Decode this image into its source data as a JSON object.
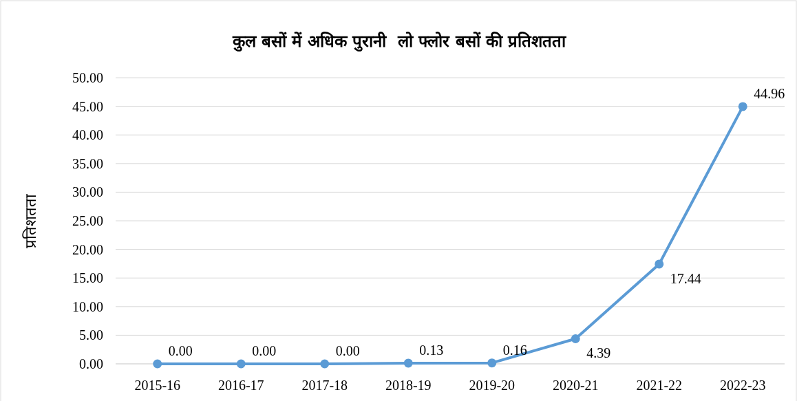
{
  "chart_data": {
    "type": "line",
    "title": "कुल बसों में अधिक पुरानी  लो फ्लोर बसों की प्रतिशतता",
    "ylabel": "प्रतिशतता",
    "categories": [
      "2015-16",
      "2016-17",
      "2017-18",
      "2018-19",
      "2019-20",
      "2020-21",
      "2021-22",
      "2022-23"
    ],
    "series": [
      {
        "color": "#5b9bd5",
        "values": [
          0,
          0,
          0,
          0.13,
          0.16,
          4.39,
          17.44,
          44.96
        ],
        "value_labels": [
          "0.00",
          "0.00",
          "0.00",
          "0.13",
          "0.16",
          "4.39",
          "17.44",
          "44.96"
        ]
      }
    ],
    "ylim": [
      0,
      50
    ],
    "yticks": [
      {
        "value": 0,
        "label": "0.00"
      },
      {
        "value": 5,
        "label": "5.00"
      },
      {
        "value": 10,
        "label": "10.00"
      },
      {
        "value": 15,
        "label": "15.00"
      },
      {
        "value": 20,
        "label": "20.00"
      },
      {
        "value": 25,
        "label": "25.00"
      },
      {
        "value": 30,
        "label": "30.00"
      },
      {
        "value": 35,
        "label": "35.00"
      },
      {
        "value": 40,
        "label": "40.00"
      },
      {
        "value": 45,
        "label": "45.00"
      },
      {
        "value": 50,
        "label": "50.00"
      }
    ],
    "grid": "y",
    "marker": "circle",
    "line_style": "solid"
  }
}
